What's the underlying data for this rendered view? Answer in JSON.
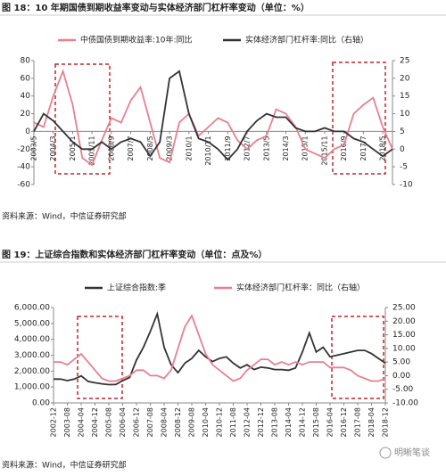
{
  "chart_data": [
    {
      "type": "line",
      "title": "图 18：10 年期国债到期收益率变动与实体经济部门杠杆率变动（单位：%）",
      "source": "资料来源：Wind，中信证券研究部",
      "categories": [
        "2003/5",
        null,
        "2004/3",
        null,
        "2005/1",
        null,
        "2005/11",
        null,
        "2006/9",
        null,
        "2007/7",
        null,
        "2008/5",
        null,
        "2009/3",
        null,
        "2010/1",
        null,
        "2010/11",
        null,
        "2011/9",
        null,
        "2012/7",
        null,
        "2013/5",
        null,
        "2014/3",
        null,
        "2015/1",
        null,
        "2015/11",
        null,
        "2016/9",
        null,
        "2017/7",
        null,
        "2018/5",
        null
      ],
      "series": [
        {
          "name": "中债国债到期收益率:10年:同比",
          "color": "#e8808f",
          "values": [
            10,
            5,
            40,
            68,
            30,
            -30,
            -38,
            -10,
            15,
            10,
            35,
            50,
            10,
            -30,
            -35,
            10,
            20,
            -5,
            5,
            15,
            10,
            -10,
            -20,
            -10,
            -5,
            25,
            20,
            5,
            -20,
            -25,
            -30,
            -20,
            -15,
            20,
            30,
            38,
            5,
            -20
          ]
        },
        {
          "name": "实体经济部门杠杆率:同比（右轴）",
          "color": "#333333",
          "axis": "y2",
          "values": [
            5,
            10,
            8,
            5,
            2,
            0,
            0,
            2,
            0,
            2,
            3,
            2,
            -2,
            2,
            20,
            22,
            10,
            3,
            2,
            0,
            -3,
            0,
            5,
            8,
            10,
            9,
            9,
            6,
            5,
            5,
            6,
            5,
            5,
            3,
            2,
            0,
            -2,
            0
          ]
        }
      ],
      "ylim": [
        -60,
        80
      ],
      "yticks": [
        -60,
        -40,
        -20,
        0,
        20,
        40,
        60,
        80
      ],
      "y2lim": [
        -10,
        25
      ],
      "y2ticks": [
        -10,
        -5,
        0,
        5,
        10,
        15,
        20,
        25
      ]
    },
    {
      "type": "line",
      "title": "图 19：上证综合指数和实体经济部门杠杆率变动（单位：点及%）",
      "source": "资料来源：Wind，中信证券研究部",
      "categories": [
        "2002-12",
        null,
        "2003-08",
        null,
        "2004-04",
        null,
        "2004-12",
        null,
        "2005-08",
        null,
        "2006-04",
        null,
        "2006-12",
        null,
        "2007-08",
        null,
        "2008-04",
        null,
        "2008-12",
        null,
        "2009-08",
        null,
        "2010-04",
        null,
        "2010-12",
        null,
        "2011-08",
        null,
        "2012-04",
        null,
        "2012-12",
        null,
        "2013-08",
        null,
        "2014-04",
        null,
        "2014-12",
        null,
        "2015-08",
        null,
        "2016-04",
        null,
        "2016-12",
        null,
        "2017-08",
        null,
        "2018-04",
        null,
        "2018-12"
      ],
      "series": [
        {
          "name": "上证综合指数:季",
          "color": "#333333",
          "values": [
            1500,
            1500,
            1400,
            1500,
            1700,
            1350,
            1270,
            1200,
            1150,
            1160,
            1400,
            1600,
            2700,
            3500,
            4500,
            5600,
            3500,
            2400,
            1900,
            2500,
            2800,
            3300,
            2900,
            2600,
            2800,
            2900,
            2500,
            2200,
            2400,
            2100,
            2250,
            2200,
            2100,
            2100,
            2050,
            2200,
            3200,
            4400,
            3200,
            3500,
            2900,
            3000,
            3100,
            3200,
            3300,
            3300,
            3100,
            2800,
            2500
          ]
        },
        {
          "name": "实体经济部门杠杆率：同比（右轴）",
          "color": "#e8808f",
          "axis": "y2",
          "values": [
            5,
            5,
            4,
            6,
            8,
            5,
            2,
            -1,
            -2,
            -2,
            -1,
            0,
            2,
            2,
            0,
            0,
            -1,
            2,
            10,
            18,
            22,
            15,
            8,
            4,
            2,
            0,
            -2,
            -1,
            2,
            4,
            6,
            6,
            4,
            5,
            4,
            5,
            4,
            5,
            5,
            5,
            3,
            3,
            3,
            2,
            0,
            -1,
            -2,
            -2,
            -1
          ]
        }
      ],
      "ylim": [
        0,
        6000
      ],
      "yticks": [
        {
          "value": 0,
          "label": "0.00"
        },
        {
          "value": 1000,
          "label": "1,000.00"
        },
        {
          "value": 2000,
          "label": "2,000.00"
        },
        {
          "value": 3000,
          "label": "3,000.00"
        },
        {
          "value": 4000,
          "label": "4,000.00"
        },
        {
          "value": 5000,
          "label": "5,000.00"
        },
        {
          "value": 6000,
          "label": "6,000.00"
        }
      ],
      "y2lim": [
        -10,
        25
      ],
      "y2ticks": [
        {
          "value": -10,
          "label": "-10.00"
        },
        {
          "value": -5,
          "label": "-5.00"
        },
        {
          "value": 0,
          "label": "0.00"
        },
        {
          "value": 5,
          "label": "5.00"
        },
        {
          "value": 10,
          "label": "10.00"
        },
        {
          "value": 15,
          "label": "15.00"
        },
        {
          "value": 20,
          "label": "20.00"
        },
        {
          "value": 25,
          "label": "25.00"
        }
      ]
    }
  ],
  "watermark": "明晰笔谈"
}
